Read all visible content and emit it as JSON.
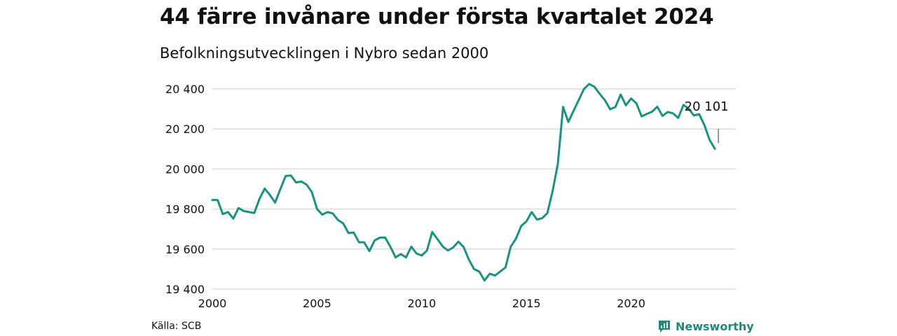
{
  "header": {
    "title": "44 färre invånare under första kvartalet 2024",
    "subtitle": "Befolkningsutvecklingen i Nybro sedan 2000"
  },
  "footer": {
    "source": "Källa: SCB",
    "brand": "Newsworthy"
  },
  "colors": {
    "line": "#1a9282",
    "grid": "#dddddd",
    "brand": "#1a8b7c"
  },
  "chart_data": {
    "type": "line",
    "title": "44 färre invånare under första kvartalet 2024",
    "subtitle": "Befolkningsutvecklingen i Nybro sedan 2000",
    "xlabel": "",
    "ylabel": "",
    "xlim": [
      2000,
      2024.4
    ],
    "ylim": [
      19400,
      20450
    ],
    "grid": true,
    "x_ticks": [
      2000,
      2005,
      2010,
      2015,
      2020
    ],
    "x_tick_labels": [
      "2000",
      "2005",
      "2010",
      "2015",
      "2020"
    ],
    "y_ticks": [
      19400,
      19600,
      19800,
      20000,
      20200,
      20400
    ],
    "y_tick_labels": [
      "19 400",
      "19 600",
      "19 800",
      "20 000",
      "20 200",
      "20 400"
    ],
    "annotation": {
      "text": "20 101",
      "x": 2024.0,
      "y": 20101
    },
    "x": [
      2000.0,
      2000.25,
      2000.5,
      2000.75,
      2001.0,
      2001.25,
      2001.5,
      2001.75,
      2002.0,
      2002.25,
      2002.5,
      2002.75,
      2003.0,
      2003.25,
      2003.5,
      2003.75,
      2004.0,
      2004.25,
      2004.5,
      2004.75,
      2005.0,
      2005.25,
      2005.5,
      2005.75,
      2006.0,
      2006.25,
      2006.5,
      2006.75,
      2007.0,
      2007.25,
      2007.5,
      2007.75,
      2008.0,
      2008.25,
      2008.5,
      2008.75,
      2009.0,
      2009.25,
      2009.5,
      2009.75,
      2010.0,
      2010.25,
      2010.5,
      2010.75,
      2011.0,
      2011.25,
      2011.5,
      2011.75,
      2012.0,
      2012.25,
      2012.5,
      2012.75,
      2013.0,
      2013.25,
      2013.5,
      2013.75,
      2014.0,
      2014.25,
      2014.5,
      2014.75,
      2015.0,
      2015.25,
      2015.5,
      2015.75,
      2016.0,
      2016.25,
      2016.5,
      2016.75,
      2017.0,
      2017.25,
      2017.5,
      2017.75,
      2018.0,
      2018.25,
      2018.5,
      2018.75,
      2019.0,
      2019.25,
      2019.5,
      2019.75,
      2020.0,
      2020.25,
      2020.5,
      2020.75,
      2021.0,
      2021.25,
      2021.5,
      2021.75,
      2022.0,
      2022.25,
      2022.5,
      2022.75,
      2023.0,
      2023.25,
      2023.5,
      2023.75,
      2024.0
    ],
    "series": [
      {
        "values": [
          19845,
          19845,
          19775,
          19785,
          19752,
          19805,
          19790,
          19785,
          19780,
          19850,
          19902,
          19870,
          19832,
          19900,
          19965,
          19967,
          19933,
          19937,
          19922,
          19885,
          19800,
          19772,
          19785,
          19778,
          19745,
          19728,
          19680,
          19683,
          19634,
          19634,
          19590,
          19643,
          19657,
          19658,
          19612,
          19558,
          19575,
          19558,
          19612,
          19578,
          19568,
          19593,
          19685,
          19650,
          19613,
          19593,
          19608,
          19637,
          19610,
          19548,
          19500,
          19487,
          19443,
          19477,
          19468,
          19488,
          19508,
          19612,
          19652,
          19715,
          19738,
          19785,
          19748,
          19754,
          19780,
          19888,
          20025,
          20310,
          20235,
          20290,
          20345,
          20400,
          20425,
          20410,
          20375,
          20343,
          20298,
          20310,
          20372,
          20318,
          20352,
          20328,
          20263,
          20275,
          20286,
          20311,
          20265,
          20285,
          20278,
          20255,
          20320,
          20301,
          20267,
          20274,
          20219,
          20145,
          20101
        ]
      }
    ]
  }
}
